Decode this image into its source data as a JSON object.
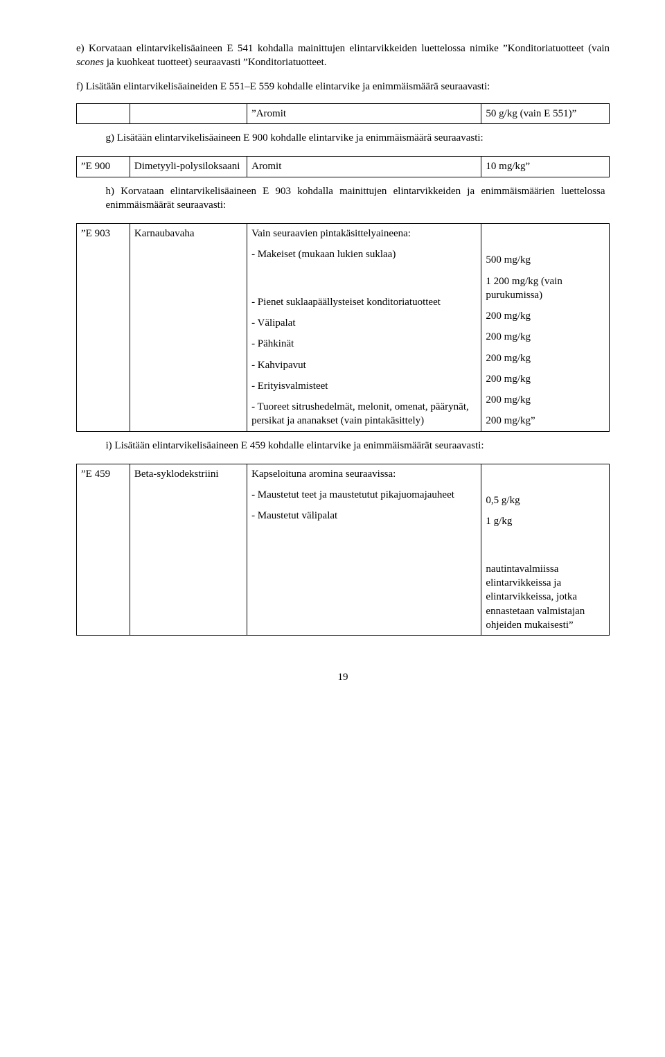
{
  "para_e": "e) Korvataan elintarvikelisäaineen E 541 kohdalla mainittujen elintarvikkeiden luettelossa nimike ”Konditoriatuotteet (vain scones ja kuohkeat tuotteet) seuraavasti ”Konditoriatuotteet.",
  "para_f": "f) Lisätään elintarvikelisäaineiden E 551–E 559 kohdalle elintarvike ja enimmäismäärä seuraavasti:",
  "italic_word": "scones",
  "table_f": {
    "desc": "”Aromit",
    "val": "50 g/kg (vain E 551)”"
  },
  "para_g": "g) Lisätään elintarvikelisäaineen E 900 kohdalle elintarvike ja enimmäismäärä seuraavasti:",
  "row_e900": {
    "code": "”E 900",
    "name": "Dimetyyli-polysiloksaani",
    "desc": "Aromit",
    "val": "10 mg/kg”"
  },
  "para_h": "h) Korvataan elintarvikelisäaineen E 903 kohdalla mainittujen elintarvikkeiden ja enimmäismäärien luettelossa enimmäismäärät seuraavasti:",
  "row_e903": {
    "code": "”E 903",
    "name": "Karnaubavaha",
    "desc_lines": [
      "Vain seuraavien pintakäsittelyaineena:",
      "- Makeiset (mukaan lukien suklaa)",
      "",
      "- Pienet suklaapäällysteiset konditoriatuotteet",
      "- Välipalat",
      "- Pähkinät",
      "- Kahvipavut",
      "- Erityisvalmisteet",
      "- Tuoreet sitrushedelmät, melonit, omenat, päärynät, persikat ja ananakset (vain pintakäsittely)"
    ],
    "val_lines": [
      "",
      "500 mg/kg",
      "1 200 mg/kg (vain purukumissa)",
      "200 mg/kg",
      "200 mg/kg",
      "200 mg/kg",
      "200 mg/kg",
      "200 mg/kg",
      "200 mg/kg”"
    ]
  },
  "para_i": "i) Lisätään elintarvikelisäaineen E 459 kohdalle elintarvike ja enimmäismäärät seuraavasti:",
  "row_e459": {
    "code": "”E 459",
    "name": "Beta-syklodekstriini",
    "desc_lines": [
      "Kapseloituna aromina seuraavissa:",
      "- Maustetut teet ja maustetutut pikajuomajauheet",
      "- Maustetut välipalat"
    ],
    "val_lines": [
      "",
      "0,5 g/kg",
      "1 g/kg",
      "",
      "nautintavalmiissa elintarvikkeissa ja elintarvikkeissa, jotka ennastetaan valmistajan ohjeiden mukaisesti”"
    ]
  },
  "page_number": "19"
}
